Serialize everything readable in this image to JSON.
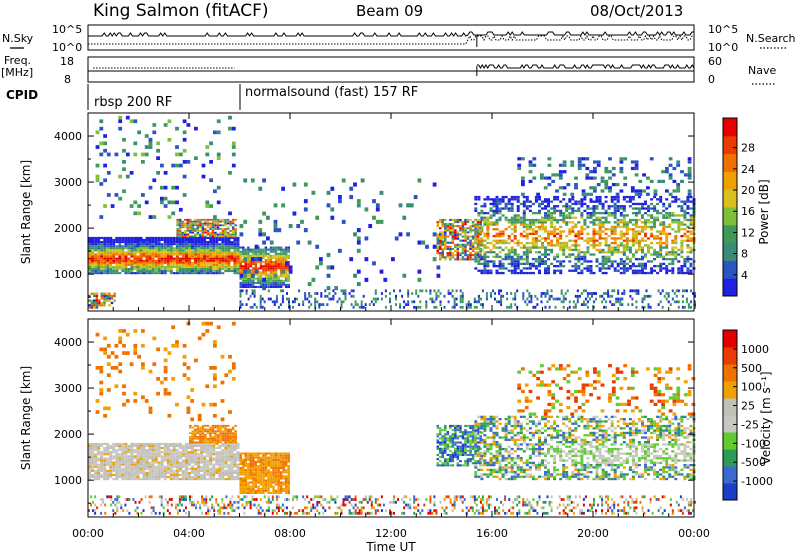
{
  "header": {
    "station": "King Salmon (fitACF)",
    "beam": "Beam 09",
    "date": "08/Oct/2013"
  },
  "side_labels": {
    "nsky": "N.Sky",
    "nsearch": "N.Search",
    "freq_line1": "Freq.",
    "freq_line2": "[MHz]",
    "nave": "Nave",
    "cpid": "CPID"
  },
  "mini_panels": {
    "noise_ticks_left": [
      "10^5",
      "10^0"
    ],
    "noise_ticks_right": [
      "10^5",
      "10^0"
    ],
    "freq_ticks_left": [
      "18",
      "8"
    ],
    "nave_ticks_right": [
      "60",
      "0"
    ]
  },
  "cpid_segments": [
    {
      "label": "rbsp 200 RF",
      "start_hour": 0
    },
    {
      "label": "normalsound (fast) 157 RF",
      "start_hour": 6
    }
  ],
  "colors": {
    "power_scale": [
      "#2020e0",
      "#2a55c0",
      "#3a8a78",
      "#3f9a5a",
      "#7fbf3a",
      "#d9c020",
      "#f0a000",
      "#f07000",
      "#e83c00",
      "#e80000"
    ],
    "velocity_scale": [
      "#1a3ec8",
      "#3a6ad0",
      "#2e9a58",
      "#60cc30",
      "#c8c8c0",
      "#c0c0b8",
      "#f0a000",
      "#f07000",
      "#e83c00",
      "#e00000"
    ]
  },
  "chart_data": [
    {
      "type": "heatmap",
      "name": "power",
      "ylabel": "Slant Range [km]",
      "ylim": [
        200,
        4500
      ],
      "xlim_hours": [
        0,
        24
      ],
      "y_ticks": [
        "1000",
        "2000",
        "3000",
        "4000"
      ],
      "colorbar_label": "Power [dB]",
      "colorbar_ticks": [
        "4",
        "8",
        "12",
        "16",
        "20",
        "24",
        "28"
      ]
    },
    {
      "type": "heatmap",
      "name": "velocity",
      "ylabel": "Slant Range [km]",
      "ylim": [
        200,
        4500
      ],
      "xlim_hours": [
        0,
        24
      ],
      "y_ticks": [
        "1000",
        "2000",
        "3000",
        "4000"
      ],
      "colorbar_label": "Velocity [m s⁻¹]",
      "colorbar_ticks": [
        "1000",
        "500",
        "100",
        "25",
        "-25",
        "-100",
        "-500",
        "-1000"
      ]
    }
  ],
  "x_axis": {
    "label": "Time UT",
    "ticks": [
      "00:00",
      "04:00",
      "08:00",
      "12:00",
      "16:00",
      "20:00",
      "00:00"
    ]
  }
}
